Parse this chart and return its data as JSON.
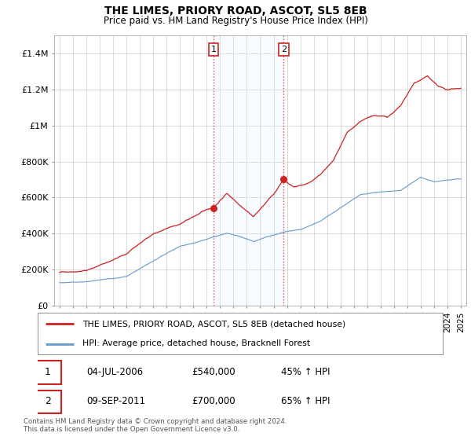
{
  "title": "THE LIMES, PRIORY ROAD, ASCOT, SL5 8EB",
  "subtitle": "Price paid vs. HM Land Registry's House Price Index (HPI)",
  "legend_line1": "THE LIMES, PRIORY ROAD, ASCOT, SL5 8EB (detached house)",
  "legend_line2": "HPI: Average price, detached house, Bracknell Forest",
  "annotation1_label": "1",
  "annotation1_date": "04-JUL-2006",
  "annotation1_price": "£540,000",
  "annotation1_hpi": "45% ↑ HPI",
  "annotation2_label": "2",
  "annotation2_date": "09-SEP-2011",
  "annotation2_price": "£700,000",
  "annotation2_hpi": "65% ↑ HPI",
  "footnote": "Contains HM Land Registry data © Crown copyright and database right 2024.\nThis data is licensed under the Open Government Licence v3.0.",
  "red_color": "#cc2222",
  "blue_color": "#6699cc",
  "shade_color": "#ddeeff",
  "ylim": [
    0,
    1500000
  ],
  "yticks": [
    0,
    200000,
    400000,
    600000,
    800000,
    1000000,
    1200000,
    1400000
  ],
  "ytick_labels": [
    "£0",
    "£200K",
    "£400K",
    "£600K",
    "£800K",
    "£1M",
    "£1.2M",
    "£1.4M"
  ],
  "sale1_x": 2006.5,
  "sale1_y": 540000,
  "sale2_x": 2011.75,
  "sale2_y": 700000,
  "xlim_left": 1994.6,
  "xlim_right": 2025.4
}
